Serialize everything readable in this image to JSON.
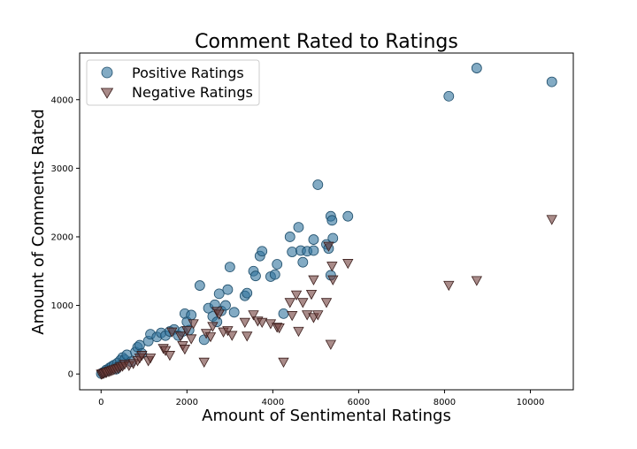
{
  "chart_data": {
    "type": "scatter",
    "title": "Comment Rated to Ratings",
    "xlabel": "Amount of Sentimental Ratings",
    "ylabel": "Amount of Comments Rated",
    "xlim": [
      -500,
      11000
    ],
    "ylim": [
      -230,
      4680
    ],
    "xticks": [
      0,
      2000,
      4000,
      6000,
      8000,
      10000
    ],
    "yticks": [
      0,
      1000,
      2000,
      3000,
      4000
    ],
    "grid": false,
    "legend_position": "top-left",
    "series": [
      {
        "name": "Positive Ratings",
        "marker": "circle",
        "color": "#31739c",
        "points": [
          [
            5,
            5
          ],
          [
            40,
            20
          ],
          [
            80,
            30
          ],
          [
            120,
            60
          ],
          [
            150,
            50
          ],
          [
            200,
            90
          ],
          [
            250,
            110
          ],
          [
            300,
            130
          ],
          [
            350,
            70
          ],
          [
            380,
            160
          ],
          [
            420,
            120
          ],
          [
            450,
            200
          ],
          [
            500,
            240
          ],
          [
            550,
            210
          ],
          [
            600,
            280
          ],
          [
            700,
            180
          ],
          [
            800,
            320
          ],
          [
            850,
            390
          ],
          [
            900,
            420
          ],
          [
            950,
            300
          ],
          [
            1100,
            480
          ],
          [
            1150,
            580
          ],
          [
            1300,
            540
          ],
          [
            1400,
            600
          ],
          [
            1500,
            560
          ],
          [
            1600,
            620
          ],
          [
            1700,
            650
          ],
          [
            1800,
            560
          ],
          [
            1900,
            620
          ],
          [
            1950,
            880
          ],
          [
            2000,
            760
          ],
          [
            2050,
            640
          ],
          [
            2100,
            860
          ],
          [
            2300,
            1290
          ],
          [
            2400,
            500
          ],
          [
            2500,
            960
          ],
          [
            2600,
            840
          ],
          [
            2650,
            1010
          ],
          [
            2700,
            760
          ],
          [
            2750,
            1170
          ],
          [
            2800,
            920
          ],
          [
            2900,
            1000
          ],
          [
            2950,
            1230
          ],
          [
            3000,
            1560
          ],
          [
            3100,
            900
          ],
          [
            3350,
            1140
          ],
          [
            3400,
            1180
          ],
          [
            3550,
            1500
          ],
          [
            3600,
            1430
          ],
          [
            3700,
            1720
          ],
          [
            3750,
            1790
          ],
          [
            3950,
            1420
          ],
          [
            4050,
            1450
          ],
          [
            4100,
            1600
          ],
          [
            4250,
            880
          ],
          [
            4400,
            2000
          ],
          [
            4450,
            1780
          ],
          [
            4600,
            2140
          ],
          [
            4650,
            1800
          ],
          [
            4700,
            1630
          ],
          [
            4800,
            1790
          ],
          [
            4950,
            1960
          ],
          [
            4950,
            1800
          ],
          [
            5050,
            2760
          ],
          [
            5250,
            1890
          ],
          [
            5300,
            1830
          ],
          [
            5350,
            2300
          ],
          [
            5380,
            2240
          ],
          [
            5400,
            1980
          ],
          [
            5350,
            1440
          ],
          [
            5750,
            2300
          ],
          [
            8100,
            4050
          ],
          [
            8750,
            4460
          ],
          [
            10500,
            4260
          ]
        ]
      },
      {
        "name": "Negative Ratings",
        "marker": "triangle-down",
        "color": "#703e3a",
        "points": [
          [
            5,
            5
          ],
          [
            30,
            10
          ],
          [
            60,
            15
          ],
          [
            100,
            25
          ],
          [
            130,
            30
          ],
          [
            180,
            40
          ],
          [
            220,
            50
          ],
          [
            260,
            60
          ],
          [
            300,
            70
          ],
          [
            350,
            80
          ],
          [
            400,
            90
          ],
          [
            450,
            110
          ],
          [
            500,
            120
          ],
          [
            550,
            150
          ],
          [
            650,
            130
          ],
          [
            750,
            160
          ],
          [
            850,
            200
          ],
          [
            900,
            240
          ],
          [
            950,
            280
          ],
          [
            1100,
            200
          ],
          [
            1150,
            240
          ],
          [
            1450,
            380
          ],
          [
            1500,
            350
          ],
          [
            1600,
            280
          ],
          [
            1650,
            620
          ],
          [
            1850,
            560
          ],
          [
            1900,
            420
          ],
          [
            1950,
            370
          ],
          [
            2000,
            640
          ],
          [
            2100,
            520
          ],
          [
            2150,
            740
          ],
          [
            2400,
            180
          ],
          [
            2450,
            600
          ],
          [
            2550,
            550
          ],
          [
            2600,
            700
          ],
          [
            2700,
            920
          ],
          [
            2750,
            880
          ],
          [
            2850,
            620
          ],
          [
            2950,
            640
          ],
          [
            3050,
            570
          ],
          [
            3350,
            760
          ],
          [
            3400,
            560
          ],
          [
            3550,
            870
          ],
          [
            3650,
            780
          ],
          [
            3750,
            760
          ],
          [
            3950,
            740
          ],
          [
            4100,
            690
          ],
          [
            4150,
            680
          ],
          [
            4250,
            180
          ],
          [
            4400,
            1050
          ],
          [
            4450,
            860
          ],
          [
            4550,
            1160
          ],
          [
            4600,
            630
          ],
          [
            4700,
            1050
          ],
          [
            4800,
            870
          ],
          [
            4900,
            1170
          ],
          [
            4950,
            1380
          ],
          [
            4950,
            830
          ],
          [
            5050,
            870
          ],
          [
            5250,
            1050
          ],
          [
            5300,
            1870
          ],
          [
            5350,
            440
          ],
          [
            5380,
            1580
          ],
          [
            5400,
            1380
          ],
          [
            5750,
            1620
          ],
          [
            8100,
            1300
          ],
          [
            8750,
            1370
          ],
          [
            10500,
            2260
          ]
        ]
      }
    ]
  }
}
